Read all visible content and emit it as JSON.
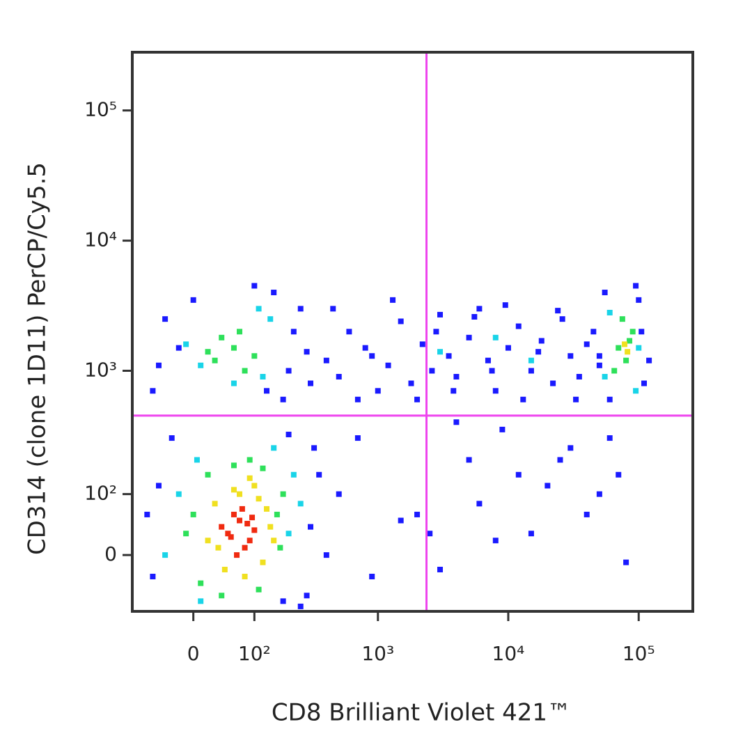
{
  "chart_data": {
    "type": "scatter",
    "x_label": "CD8 Brilliant Violet 421™",
    "y_label": "CD314 (clone 1D11) PerCP/Cy5.5",
    "xscale": "biexponential",
    "yscale": "biexponential",
    "xlim": [
      -100,
      260000
    ],
    "ylim": [
      -90,
      280000
    ],
    "xticks": [
      0,
      {
        "value": 100,
        "label": "10²"
      },
      {
        "value": 1000,
        "label": "10³"
      },
      {
        "value": 10000,
        "label": "10⁴"
      },
      {
        "value": 100000,
        "label": "10⁵"
      }
    ],
    "yticks": [
      0,
      {
        "value": 100,
        "label": "10²"
      },
      {
        "value": 1000,
        "label": "10³"
      },
      {
        "value": 10000,
        "label": "10⁴"
      },
      {
        "value": 100000,
        "label": "10⁵"
      }
    ],
    "gates": {
      "x": 2360,
      "y": 450,
      "color": "#ee44ee"
    },
    "series": [
      {
        "color": "#1a1aff",
        "x": [
          -60,
          -50,
          300,
          350,
          280,
          -30,
          400,
          250,
          200,
          -70,
          320,
          180,
          -60,
          -40,
          200,
          250,
          300,
          150,
          -20,
          180,
          220,
          -50,
          0,
          100,
          280,
          130,
          400,
          500,
          600,
          800,
          1000,
          1200,
          1500,
          1800,
          2200,
          2600,
          3000,
          3500,
          4000,
          5000,
          6000,
          7000,
          8000,
          10000,
          12000,
          15000,
          18000,
          22000,
          26000,
          30000,
          35000,
          40000,
          45000,
          50000,
          450,
          700,
          900,
          1300,
          2000,
          2800,
          3800,
          5500,
          7500,
          9500,
          13000,
          17000,
          24000,
          33000,
          55000,
          100000,
          110000,
          60000,
          95000,
          105000,
          50000,
          120000,
          500,
          700,
          1500,
          2500,
          3000,
          5000,
          6000,
          9000,
          12000,
          20000,
          30000,
          40000,
          60000,
          70000,
          80000,
          2000,
          4000,
          15000,
          25000,
          50000,
          900,
          8000
        ],
        "y": [
          -30,
          120,
          40,
          150,
          -60,
          300,
          0,
          -80,
          320,
          60,
          250,
          -70,
          700,
          2500,
          1000,
          3000,
          800,
          4000,
          1500,
          600,
          2000,
          1100,
          3500,
          4500,
          1400,
          700,
          1200,
          900,
          2000,
          1500,
          700,
          1100,
          2400,
          800,
          1600,
          1000,
          2700,
          1300,
          900,
          1800,
          3000,
          1200,
          700,
          1500,
          2200,
          1000,
          1700,
          800,
          2500,
          1300,
          900,
          1600,
          2000,
          1100,
          3000,
          600,
          1300,
          3500,
          600,
          2000,
          700,
          2600,
          1000,
          3200,
          600,
          1400,
          2900,
          600,
          4000,
          3500,
          800,
          600,
          4500,
          2000,
          1300,
          1200,
          100,
          300,
          50,
          30,
          -20,
          200,
          80,
          350,
          150,
          120,
          250,
          60,
          300,
          150,
          -10,
          60,
          400,
          30,
          200,
          100,
          -30,
          20
        ]
      },
      {
        "color": "#19d4e8",
        "x": [
          -20,
          200,
          220,
          10,
          150,
          -40,
          5,
          250,
          10,
          120,
          140,
          -10,
          60,
          110,
          55000,
          100000,
          60000,
          95000,
          3000,
          8000,
          15000
        ],
        "y": [
          100,
          30,
          150,
          -70,
          250,
          0,
          200,
          80,
          1100,
          900,
          2500,
          1600,
          800,
          3000,
          900,
          1500,
          2800,
          700,
          1400,
          1800,
          1200
        ]
      },
      {
        "color": "#2ee05a",
        "x": [
          0,
          10,
          160,
          180,
          20,
          60,
          120,
          110,
          40,
          170,
          90,
          -10,
          30,
          60,
          80,
          40,
          100,
          20,
          70,
          70000,
          80000,
          90000,
          65000,
          85000,
          75000
        ],
        "y": [
          60,
          -40,
          60,
          100,
          150,
          180,
          170,
          -50,
          -60,
          10,
          200,
          30,
          1200,
          1500,
          1000,
          1800,
          1300,
          1400,
          2000,
          1500,
          1200,
          2000,
          1000,
          1700,
          2500
        ]
      },
      {
        "color": "#f0e020",
        "x": [
          30,
          110,
          120,
          45,
          140,
          60,
          100,
          20,
          130,
          80,
          35,
          90,
          150,
          70,
          78000,
          82000
        ],
        "y": [
          80,
          90,
          -10,
          -20,
          40,
          110,
          120,
          20,
          70,
          -30,
          10,
          140,
          20,
          100,
          1600,
          1400
        ]
      },
      {
        "color": "#f02a10",
        "x": [
          50,
          70,
          90,
          60,
          80,
          40,
          100,
          75,
          65,
          85,
          55,
          95
        ],
        "y": [
          30,
          50,
          20,
          60,
          10,
          40,
          35,
          70,
          0,
          45,
          25,
          55
        ]
      }
    ]
  }
}
